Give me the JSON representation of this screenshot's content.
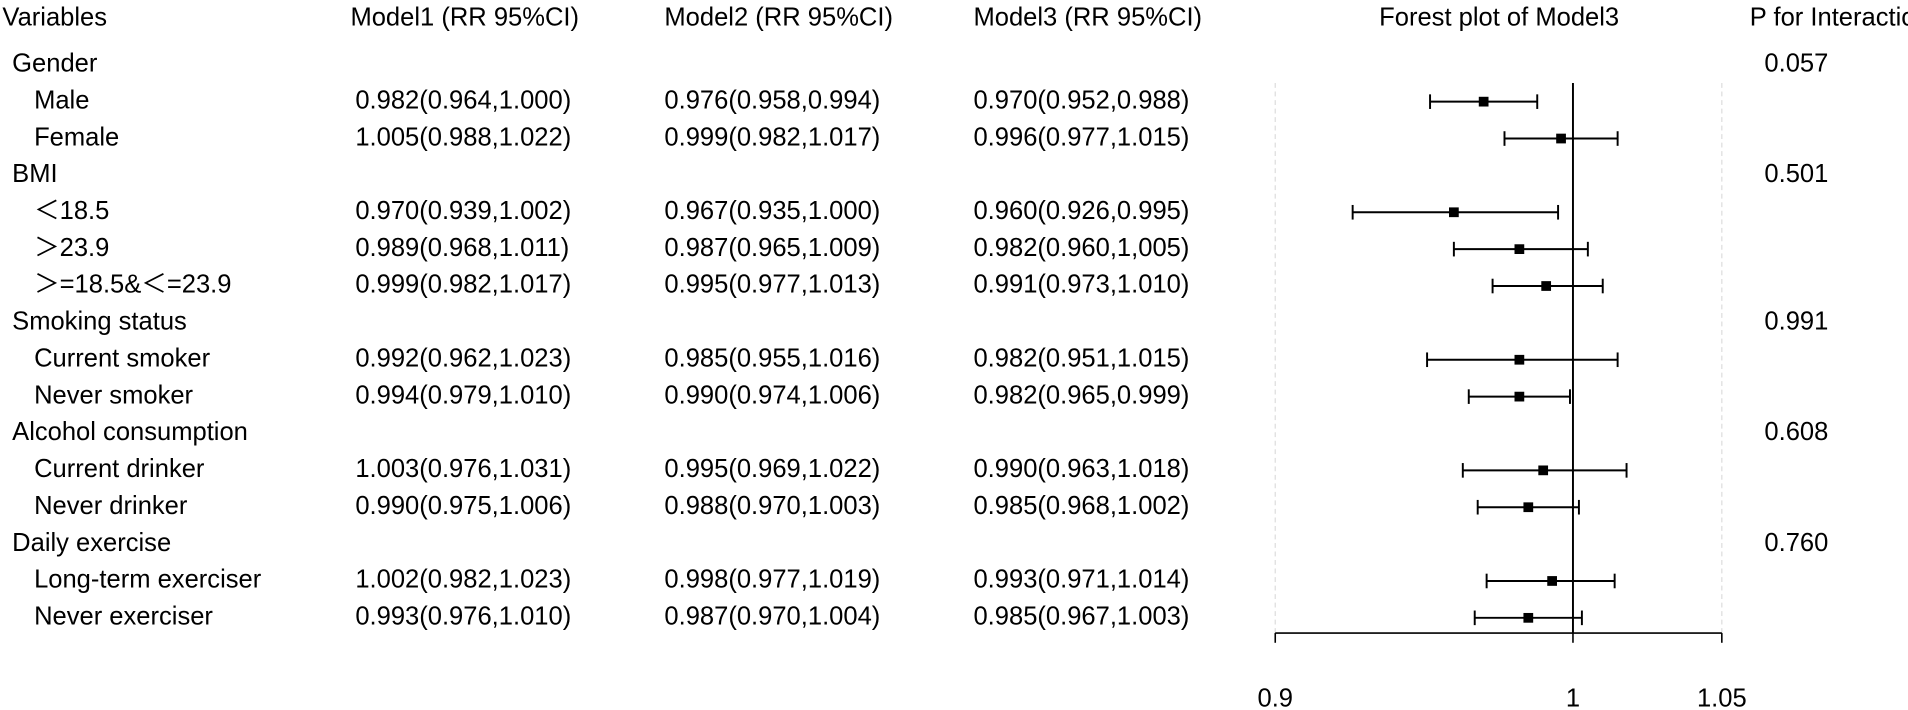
{
  "table": {
    "headers": [
      "Variables",
      "Model1 (RR 95%CI)",
      "Model2 (RR 95%CI)",
      "Model3 (RR 95%CI)",
      "P for Interaction"
    ],
    "rows": [
      {
        "label": "Gender",
        "p": "0.057"
      },
      {
        "label": "Male",
        "model1": "0.982(0.964,1.000)",
        "model2": "0.976(0.958,0.994)"
      },
      {
        "label": "Female",
        "model1": "1.005(0.988,1.022)",
        "model2": "0.999(0.982,1.017)"
      },
      {
        "label": "BMI",
        "p": "0.501"
      },
      {
        "label": "＜18.5",
        "model1": "0.970(0.939,1.002)",
        "model2": "0.967(0.935,1.000)"
      },
      {
        "label": "＞23.9",
        "model1": "0.989(0.968,1.011)",
        "model2": "0.987(0.965,1.009)"
      },
      {
        "label": "＞=18.5&＜=23.9",
        "model1": "0.999(0.982,1.017)",
        "model2": "0.995(0.977,1.013)"
      },
      {
        "label": "Smoking status",
        "p": "0.991"
      },
      {
        "label": "Current smoker",
        "model1": "0.992(0.962,1.023)",
        "model2": "0.985(0.955,1.016)"
      },
      {
        "label": "Never smoker",
        "model1": "0.994(0.979,1.010)",
        "model2": "0.990(0.974,1.006)"
      },
      {
        "label": "Alcohol consumption",
        "p": "0.608"
      },
      {
        "label": "Current drinker",
        "model1": "1.003(0.976,1.031)",
        "model2": "0.995(0.969,1.022)"
      },
      {
        "label": "Never drinker",
        "model1": "0.990(0.975,1.006)",
        "model2": "0.988(0.970,1.003)"
      },
      {
        "label": "Daily exercise",
        "p": "0.760"
      },
      {
        "label": "Long-term exerciser",
        "model1": "1.002(0.982,1.023)",
        "model2": "0.998(0.977,1.019)"
      },
      {
        "label": "Never exerciser",
        "model1": "0.993(0.976,1.010)",
        "model2": "0.987(0.970,1.004)"
      }
    ]
  },
  "chart_data": {
    "type": "forest",
    "title": "Forest plot of Model3",
    "values": [
      0.97,
      0.996,
      0.96,
      0.982,
      0.991,
      0.982,
      0.982,
      0.99,
      0.985,
      0.993,
      0.985
    ],
    "lower": [
      0.952,
      0.977,
      0.926,
      0.96,
      0.973,
      0.951,
      0.965,
      0.963,
      0.968,
      0.971,
      0.967
    ],
    "upper": [
      0.988,
      1.015,
      0.995,
      1.005,
      1.01,
      1.015,
      0.999,
      1.018,
      1.002,
      1.014,
      1.003
    ],
    "value_labels": [
      "0.970(0.952,0.988)",
      "0.996(0.977,1.015)",
      "0.960(0.926,0.995)",
      "0.982(0.960,1,005)",
      "0.991(0.973,1.010)",
      "0.982(0.951,1.015)",
      "0.982(0.965,0.999)",
      "0.990(0.963,1.018)",
      "0.985(0.968,1.002)",
      "0.993(0.971,1.014)",
      "0.985(0.967,1.003)"
    ],
    "xlim": [
      0.9,
      1.05
    ],
    "xticks": [
      0.9,
      1,
      1.05
    ],
    "reference": 1,
    "grid": true,
    "color": "#000000"
  }
}
